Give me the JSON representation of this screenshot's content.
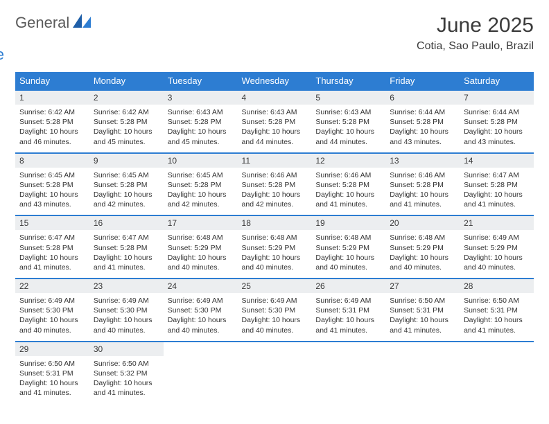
{
  "logo": {
    "general": "General",
    "blue": "Blue"
  },
  "title": "June 2025",
  "location": "Cotia, Sao Paulo, Brazil",
  "colors": {
    "header_bg": "#2d7dd2",
    "header_text": "#ffffff",
    "daynum_bg": "#eceef0",
    "row_border": "#2d7dd2",
    "logo_gray": "#5a5a5a",
    "logo_blue": "#2d7dd2",
    "body_bg": "#ffffff",
    "text": "#333333"
  },
  "weekdays": [
    "Sunday",
    "Monday",
    "Tuesday",
    "Wednesday",
    "Thursday",
    "Friday",
    "Saturday"
  ],
  "days": [
    {
      "n": 1,
      "sunrise": "Sunrise: 6:42 AM",
      "sunset": "Sunset: 5:28 PM",
      "daylight": "Daylight: 10 hours and 46 minutes."
    },
    {
      "n": 2,
      "sunrise": "Sunrise: 6:42 AM",
      "sunset": "Sunset: 5:28 PM",
      "daylight": "Daylight: 10 hours and 45 minutes."
    },
    {
      "n": 3,
      "sunrise": "Sunrise: 6:43 AM",
      "sunset": "Sunset: 5:28 PM",
      "daylight": "Daylight: 10 hours and 45 minutes."
    },
    {
      "n": 4,
      "sunrise": "Sunrise: 6:43 AM",
      "sunset": "Sunset: 5:28 PM",
      "daylight": "Daylight: 10 hours and 44 minutes."
    },
    {
      "n": 5,
      "sunrise": "Sunrise: 6:43 AM",
      "sunset": "Sunset: 5:28 PM",
      "daylight": "Daylight: 10 hours and 44 minutes."
    },
    {
      "n": 6,
      "sunrise": "Sunrise: 6:44 AM",
      "sunset": "Sunset: 5:28 PM",
      "daylight": "Daylight: 10 hours and 43 minutes."
    },
    {
      "n": 7,
      "sunrise": "Sunrise: 6:44 AM",
      "sunset": "Sunset: 5:28 PM",
      "daylight": "Daylight: 10 hours and 43 minutes."
    },
    {
      "n": 8,
      "sunrise": "Sunrise: 6:45 AM",
      "sunset": "Sunset: 5:28 PM",
      "daylight": "Daylight: 10 hours and 43 minutes."
    },
    {
      "n": 9,
      "sunrise": "Sunrise: 6:45 AM",
      "sunset": "Sunset: 5:28 PM",
      "daylight": "Daylight: 10 hours and 42 minutes."
    },
    {
      "n": 10,
      "sunrise": "Sunrise: 6:45 AM",
      "sunset": "Sunset: 5:28 PM",
      "daylight": "Daylight: 10 hours and 42 minutes."
    },
    {
      "n": 11,
      "sunrise": "Sunrise: 6:46 AM",
      "sunset": "Sunset: 5:28 PM",
      "daylight": "Daylight: 10 hours and 42 minutes."
    },
    {
      "n": 12,
      "sunrise": "Sunrise: 6:46 AM",
      "sunset": "Sunset: 5:28 PM",
      "daylight": "Daylight: 10 hours and 41 minutes."
    },
    {
      "n": 13,
      "sunrise": "Sunrise: 6:46 AM",
      "sunset": "Sunset: 5:28 PM",
      "daylight": "Daylight: 10 hours and 41 minutes."
    },
    {
      "n": 14,
      "sunrise": "Sunrise: 6:47 AM",
      "sunset": "Sunset: 5:28 PM",
      "daylight": "Daylight: 10 hours and 41 minutes."
    },
    {
      "n": 15,
      "sunrise": "Sunrise: 6:47 AM",
      "sunset": "Sunset: 5:28 PM",
      "daylight": "Daylight: 10 hours and 41 minutes."
    },
    {
      "n": 16,
      "sunrise": "Sunrise: 6:47 AM",
      "sunset": "Sunset: 5:28 PM",
      "daylight": "Daylight: 10 hours and 41 minutes."
    },
    {
      "n": 17,
      "sunrise": "Sunrise: 6:48 AM",
      "sunset": "Sunset: 5:29 PM",
      "daylight": "Daylight: 10 hours and 40 minutes."
    },
    {
      "n": 18,
      "sunrise": "Sunrise: 6:48 AM",
      "sunset": "Sunset: 5:29 PM",
      "daylight": "Daylight: 10 hours and 40 minutes."
    },
    {
      "n": 19,
      "sunrise": "Sunrise: 6:48 AM",
      "sunset": "Sunset: 5:29 PM",
      "daylight": "Daylight: 10 hours and 40 minutes."
    },
    {
      "n": 20,
      "sunrise": "Sunrise: 6:48 AM",
      "sunset": "Sunset: 5:29 PM",
      "daylight": "Daylight: 10 hours and 40 minutes."
    },
    {
      "n": 21,
      "sunrise": "Sunrise: 6:49 AM",
      "sunset": "Sunset: 5:29 PM",
      "daylight": "Daylight: 10 hours and 40 minutes."
    },
    {
      "n": 22,
      "sunrise": "Sunrise: 6:49 AM",
      "sunset": "Sunset: 5:30 PM",
      "daylight": "Daylight: 10 hours and 40 minutes."
    },
    {
      "n": 23,
      "sunrise": "Sunrise: 6:49 AM",
      "sunset": "Sunset: 5:30 PM",
      "daylight": "Daylight: 10 hours and 40 minutes."
    },
    {
      "n": 24,
      "sunrise": "Sunrise: 6:49 AM",
      "sunset": "Sunset: 5:30 PM",
      "daylight": "Daylight: 10 hours and 40 minutes."
    },
    {
      "n": 25,
      "sunrise": "Sunrise: 6:49 AM",
      "sunset": "Sunset: 5:30 PM",
      "daylight": "Daylight: 10 hours and 40 minutes."
    },
    {
      "n": 26,
      "sunrise": "Sunrise: 6:49 AM",
      "sunset": "Sunset: 5:31 PM",
      "daylight": "Daylight: 10 hours and 41 minutes."
    },
    {
      "n": 27,
      "sunrise": "Sunrise: 6:50 AM",
      "sunset": "Sunset: 5:31 PM",
      "daylight": "Daylight: 10 hours and 41 minutes."
    },
    {
      "n": 28,
      "sunrise": "Sunrise: 6:50 AM",
      "sunset": "Sunset: 5:31 PM",
      "daylight": "Daylight: 10 hours and 41 minutes."
    },
    {
      "n": 29,
      "sunrise": "Sunrise: 6:50 AM",
      "sunset": "Sunset: 5:31 PM",
      "daylight": "Daylight: 10 hours and 41 minutes."
    },
    {
      "n": 30,
      "sunrise": "Sunrise: 6:50 AM",
      "sunset": "Sunset: 5:32 PM",
      "daylight": "Daylight: 10 hours and 41 minutes."
    }
  ]
}
